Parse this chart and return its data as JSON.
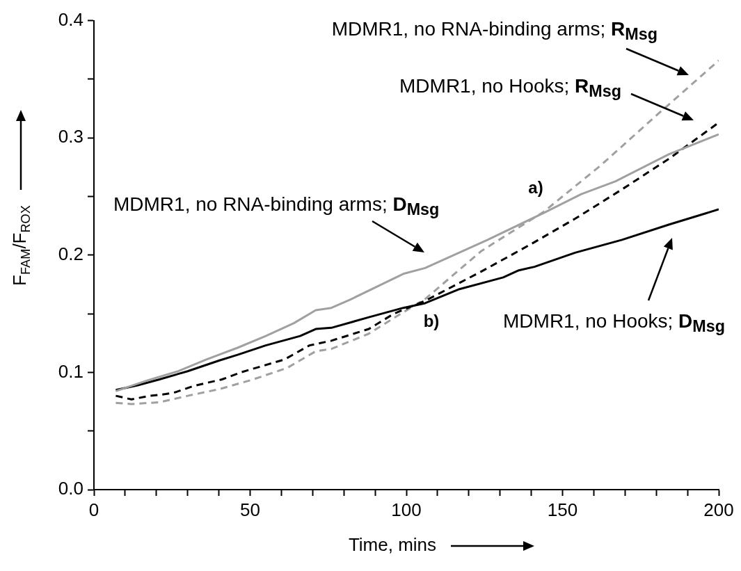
{
  "chart_data": {
    "type": "line",
    "xlabel": "Time, mins",
    "ylabel": "F$_{FAM}$/F$_{ROX}$",
    "xlim": [
      0,
      200
    ],
    "ylim": [
      0,
      0.4
    ],
    "xticks": [
      0,
      {
        "value": 10,
        "label": null
      },
      {
        "value": 20,
        "label": null
      },
      {
        "value": 30,
        "label": null
      },
      {
        "value": 40,
        "label": null
      },
      50,
      {
        "value": 60,
        "label": null
      },
      {
        "value": 70,
        "label": null
      },
      {
        "value": 80,
        "label": null
      },
      {
        "value": 90,
        "label": null
      },
      100,
      {
        "value": 110,
        "label": null
      },
      {
        "value": 120,
        "label": null
      },
      {
        "value": 130,
        "label": null
      },
      {
        "value": 140,
        "label": null
      },
      150,
      {
        "value": 160,
        "label": null
      },
      {
        "value": 170,
        "label": null
      },
      {
        "value": 180,
        "label": null
      },
      {
        "value": 190,
        "label": null
      },
      200
    ],
    "yticks": [
      {
        "value": 0,
        "label": "0.0"
      },
      {
        "value": 0.05,
        "label": null
      },
      0.1,
      {
        "value": 0.15,
        "label": null
      },
      0.2,
      {
        "value": 0.25,
        "label": null
      },
      0.3,
      {
        "value": 0.35,
        "label": null
      },
      0.4
    ],
    "grid": false,
    "legend": false,
    "marker": "none",
    "series": [
      {
        "color": "#a0a0a0",
        "line_style": "solid",
        "x": [
          7,
          17,
          27,
          36,
          46,
          55,
          64,
          71,
          76,
          82,
          99,
          106,
          126,
          144,
          156,
          167,
          184,
          200
        ],
        "values": [
          0.084,
          0.093,
          0.101,
          0.111,
          0.121,
          0.131,
          0.142,
          0.153,
          0.155,
          0.162,
          0.184,
          0.189,
          0.213,
          0.236,
          0.252,
          0.263,
          0.286,
          0.303
        ]
      },
      {
        "color": "#000000",
        "line_style": "solid",
        "x": [
          7,
          14,
          21,
          30,
          40,
          46,
          55,
          66,
          71,
          76,
          88,
          99,
          106,
          117,
          131,
          136,
          141,
          154,
          169,
          184,
          200
        ],
        "values": [
          0.085,
          0.089,
          0.094,
          0.101,
          0.11,
          0.115,
          0.123,
          0.131,
          0.137,
          0.138,
          0.147,
          0.155,
          0.159,
          0.171,
          0.181,
          0.187,
          0.19,
          0.202,
          0.213,
          0.226,
          0.239
        ]
      },
      {
        "color": "#000000",
        "line_style": "dashed",
        "x": [
          7,
          12,
          18,
          23,
          26,
          32,
          41,
          47,
          61,
          69,
          76,
          88,
          96,
          106,
          124,
          139,
          154,
          169,
          184,
          200
        ],
        "values": [
          0.08,
          0.077,
          0.08,
          0.0815,
          0.083,
          0.0885,
          0.094,
          0.1,
          0.111,
          0.123,
          0.127,
          0.137,
          0.15,
          0.161,
          0.186,
          0.208,
          0.231,
          0.256,
          0.282,
          0.313
        ]
      },
      {
        "color": "#a0a0a0",
        "line_style": "dashed",
        "x": [
          7,
          12,
          21,
          30,
          40,
          51,
          62,
          71,
          76,
          88,
          97,
          106,
          124,
          144,
          162,
          180,
          200
        ],
        "values": [
          0.074,
          0.073,
          0.0745,
          0.08,
          0.0856,
          0.094,
          0.104,
          0.118,
          0.12,
          0.133,
          0.148,
          0.1625,
          0.2035,
          0.237,
          0.276,
          0.319,
          0.366
        ]
      }
    ],
    "annotations": [
      "MDMR1, no RNA-binding arms; R$_{Msg}$",
      "MDMR1, no Hooks; R$_{Msg}$",
      "MDMR1, no RNA-binding arms; D$_{Msg}$",
      "a)",
      "b)",
      "MDMR1, no Hooks; D$_{Msg}$"
    ]
  }
}
